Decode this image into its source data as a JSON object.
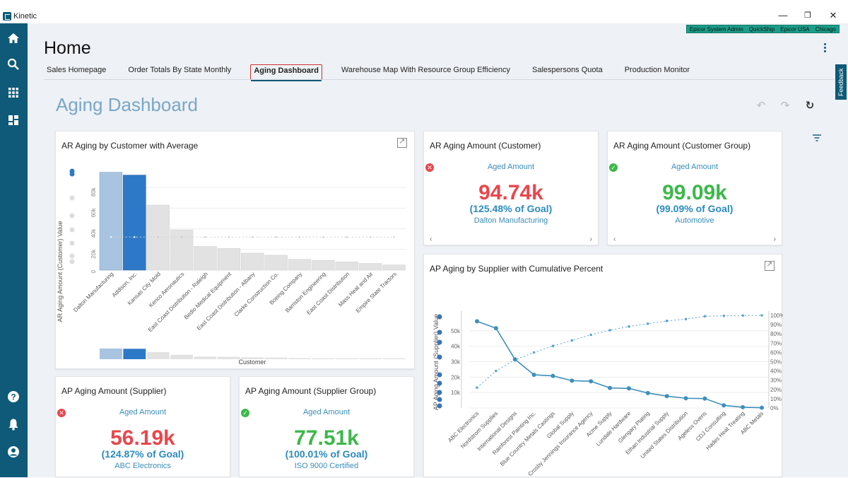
{
  "window": {
    "app_name": "Kinetic",
    "minimize": "—",
    "maximize": "❐",
    "close": "✕"
  },
  "context": [
    "Epicor System Admin",
    "QuickShip",
    "Epicor USA",
    "Chicago"
  ],
  "page": {
    "title": "Home",
    "feedback_label": "Feedback"
  },
  "tabs": [
    {
      "label": "Sales Homepage",
      "active": false
    },
    {
      "label": "Order Totals By State Monthly",
      "active": false
    },
    {
      "label": "Aging Dashboard",
      "active": true
    },
    {
      "label": "Warehouse Map With Resource Group Efficiency",
      "active": false
    },
    {
      "label": "Salespersons Quota",
      "active": false
    },
    {
      "label": "Production Monitor",
      "active": false
    }
  ],
  "dashboard": {
    "title": "Aging Dashboard"
  },
  "icons": {
    "sidebar": [
      "home-icon",
      "search-icon",
      "apps-grid-icon",
      "dashboard-icon",
      "help-icon",
      "bell-icon",
      "user-icon"
    ],
    "toolbar": [
      "undo-icon",
      "redo-icon",
      "refresh-icon",
      "filter-icon"
    ]
  },
  "colors": {
    "brand": "#0e5a78",
    "alert_red": "#e8474c",
    "ok_green": "#3cb84a",
    "accent_blue": "#2c8bc0",
    "bar_blue": "#2e79c7",
    "bar_lightblue": "#a9c4e0",
    "bar_gray": "#e2e2e2"
  },
  "kpis": {
    "ar_customer": {
      "title": "AR Aging Amount (Customer)",
      "subtitle": "Aged Amount",
      "value": "94.74k",
      "pct": "(125.48% of Goal)",
      "name": "Dalton Manufacturing",
      "status": "alert"
    },
    "ar_group": {
      "title": "AR Aging Amount (Customer Group)",
      "subtitle": "Aged Amount",
      "value": "99.09k",
      "pct": "(99.09% of Goal)",
      "name": "Automotive",
      "status": "ok"
    },
    "ap_supplier": {
      "title": "AP Aging Amount (Supplier)",
      "subtitle": "Aged Amount",
      "value": "56.19k",
      "pct": "(124.87% of Goal)",
      "name": "ABC Electronics",
      "status": "alert"
    },
    "ap_group": {
      "title": "AP Aging Amount (Supplier Group)",
      "subtitle": "Aged Amount",
      "value": "77.51k",
      "pct": "(100.01% of Goal)",
      "name": "ISO 9000 Certified",
      "status": "ok"
    }
  },
  "chart_data": [
    {
      "type": "bar",
      "title": "AR Aging by Customer with Average",
      "xlabel": "Customer",
      "ylabel": "AR Aging Amount (Customer) Value",
      "ylim": [
        0,
        100000
      ],
      "yticks": [
        "0",
        "20k",
        "40k",
        "60k",
        "80k"
      ],
      "categories": [
        "Dalton Manufacturing",
        "Addison, Inc.",
        "Kansas City Mold",
        "Kenco Aeronautics",
        "East Coast Distribution - Raleigh",
        "Bedio Medical Equipment",
        "East Coast Distribution - Albany",
        "Clarke Construction Co.",
        "Boeing Company",
        "Barriston Engineering",
        "East Coast Distribution",
        "Mass Heat and Air",
        "Empire State Tractors"
      ],
      "values": [
        94740,
        92000,
        63000,
        39000,
        23000,
        21000,
        16500,
        14500,
        10500,
        9500,
        8000,
        6500,
        5000
      ],
      "average": 32000,
      "grid": true
    },
    {
      "type": "line",
      "title": "AP Aging by Supplier with Cumulative Percent",
      "ylabel": "AP Aging Amount (Supplier) Value",
      "ylim": [
        0,
        60000
      ],
      "yticks": [
        "10k",
        "20k",
        "30k",
        "40k",
        "50k"
      ],
      "y2ticks": [
        "0%",
        "10%",
        "20%",
        "30%",
        "40%",
        "50%",
        "60%",
        "70%",
        "80%",
        "90%",
        "100%"
      ],
      "categories": [
        "ABC Electronics",
        "Nordstrom Supplies",
        "International Designs",
        "Rainforest Painting Inc.",
        "Blue Country Metals Castings",
        "Global Supply",
        "Crosby Jennings Insurance Agency",
        "Acme Supply",
        "Lundale Hardware",
        "Glengary Plating",
        "Ethan Industrial Supply",
        "United States Distribution",
        "Ageless Ovens",
        "CDJ Consulting",
        "Hades Heat Treating",
        "ABC Metals"
      ],
      "series": [
        {
          "values": [
            56190,
            51700,
            31500,
            21500,
            20800,
            17700,
            17300,
            13000,
            12700,
            9700,
            7700,
            6300,
            6100,
            1700,
            500,
            200
          ]
        },
        {
          "values": [
            22,
            40,
            52,
            60,
            67,
            73,
            79,
            84,
            88,
            91,
            94,
            96,
            99,
            99.5,
            99.8,
            100
          ]
        }
      ],
      "grid": true
    }
  ]
}
